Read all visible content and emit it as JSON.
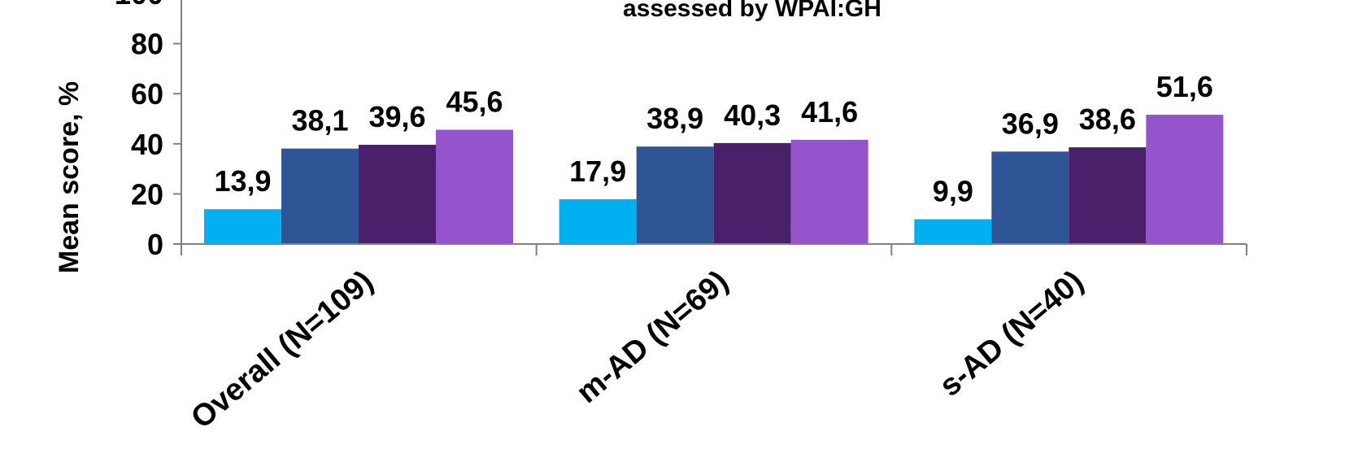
{
  "chart_data": {
    "type": "bar",
    "title": "assessed by WPAI:GH",
    "ylabel": "Mean score, %",
    "xlabel": "",
    "ylim": [
      0,
      100
    ],
    "yticks": [
      "0",
      "20",
      "40",
      "60",
      "80",
      "100"
    ],
    "grid": false,
    "categories": [
      "Overall (N=109)",
      "m-AD (N=69)",
      "s-AD (N=40)"
    ],
    "series": [
      {
        "values": [
          13.9,
          17.9,
          9.9
        ],
        "labels": [
          "13,9",
          "17,9",
          "9,9"
        ],
        "color": "#00B0F0"
      },
      {
        "values": [
          38.1,
          38.9,
          36.9
        ],
        "labels": [
          "38,1",
          "38,9",
          "36,9"
        ],
        "color": "#2F5597"
      },
      {
        "values": [
          39.6,
          40.3,
          38.6
        ],
        "labels": [
          "39,6",
          "40,3",
          "38,6"
        ],
        "color": "#4B206A"
      },
      {
        "values": [
          45.6,
          41.6,
          51.6
        ],
        "labels": [
          "45,6",
          "41,6",
          "51,6"
        ],
        "color": "#9654CC"
      }
    ]
  }
}
